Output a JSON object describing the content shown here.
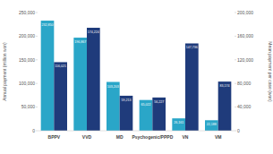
{
  "chart_data": {
    "type": "bar",
    "categories": [
      "BPPV",
      "VVD",
      "MD",
      "Psychogenic/PPPD",
      "VN",
      "VM"
    ],
    "ylabel": "Annual payment (million won)",
    "y2label": "Mean payment per case (won)",
    "ylim": [
      0,
      250000
    ],
    "yticks": [
      0,
      {
        "value": 50000,
        "label": "50,000"
      },
      {
        "value": 100000,
        "label": "100,000"
      },
      {
        "value": 150000,
        "label": "150,000"
      },
      {
        "value": 200000,
        "label": "200,000"
      },
      {
        "value": 250000,
        "label": "250,000"
      }
    ],
    "y2lim": [
      0,
      200000
    ],
    "y2ticks": [
      0,
      {
        "value": 40000,
        "label": "40,000"
      },
      {
        "value": 80000,
        "label": "80,000"
      },
      {
        "value": 120000,
        "label": "120,000"
      },
      {
        "value": 160000,
        "label": "160,000"
      },
      {
        "value": 200000,
        "label": "200,000"
      }
    ],
    "grid": false,
    "data_labels": true,
    "series": [
      {
        "color": "#2aa6c8",
        "values": [
          232850,
          196867,
          103203,
          65022,
          26161,
          22188
        ],
        "value_labels": [
          "232,850",
          "196,867",
          "103,203",
          "65,022",
          "26,161",
          "22,188"
        ]
      },
      {
        "color": "#1f3b7b",
        "axis": "y2",
        "values": [
          116021,
          174224,
          59213,
          56227,
          147736,
          83174
        ],
        "value_labels": [
          "116,021",
          "174,224",
          "59,213",
          "56,227",
          "147,736",
          "83,174"
        ]
      }
    ]
  }
}
